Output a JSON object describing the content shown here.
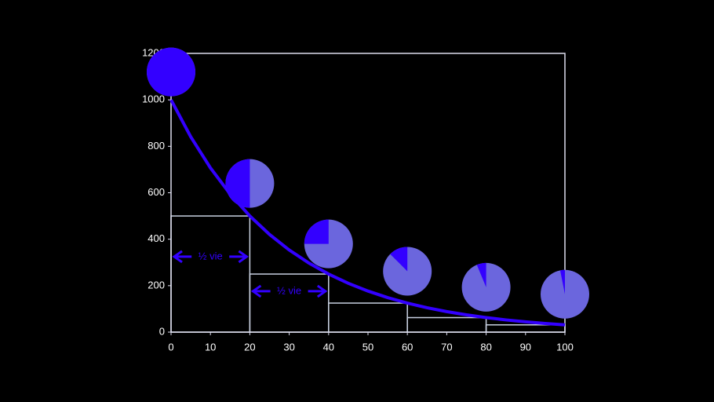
{
  "chart_data": {
    "type": "line",
    "x": [
      0,
      5,
      10,
      15,
      20,
      25,
      30,
      35,
      40,
      45,
      50,
      55,
      60,
      65,
      70,
      75,
      80,
      85,
      90,
      95,
      100
    ],
    "values": [
      1000,
      840.9,
      707.1,
      594.6,
      500,
      420.4,
      353.6,
      297.3,
      250,
      210.2,
      176.8,
      148.6,
      125,
      105.1,
      88.4,
      74.3,
      62.5,
      52.6,
      44.2,
      37.2,
      31.25
    ],
    "color": "#3300ff",
    "steps": {
      "edges": [
        0,
        20,
        40,
        60,
        80,
        100
      ],
      "values": [
        500,
        250,
        125,
        62.5,
        31.25
      ],
      "color": "#c8d0e0"
    },
    "pies": {
      "x": [
        0,
        20,
        40,
        60,
        80,
        100
      ],
      "y": [
        1120,
        640,
        380,
        262,
        193,
        163
      ],
      "values": [
        100,
        50,
        25,
        12.5,
        6.25,
        3.125
      ],
      "color": "#3300ff",
      "rest_color": "#6b66dd"
    },
    "annotations": [
      {
        "text": "½ vie",
        "x": [
          0,
          20
        ],
        "y": 325
      },
      {
        "text": "½ vie",
        "x": [
          20,
          40
        ],
        "y": 176
      }
    ],
    "xlim": [
      0,
      100
    ],
    "xticks": [
      0,
      10,
      20,
      30,
      40,
      50,
      60,
      70,
      80,
      90,
      100
    ],
    "ylim": [
      0,
      1200
    ],
    "yticks": [
      0,
      200,
      400,
      600,
      800,
      1000,
      1200
    ]
  }
}
